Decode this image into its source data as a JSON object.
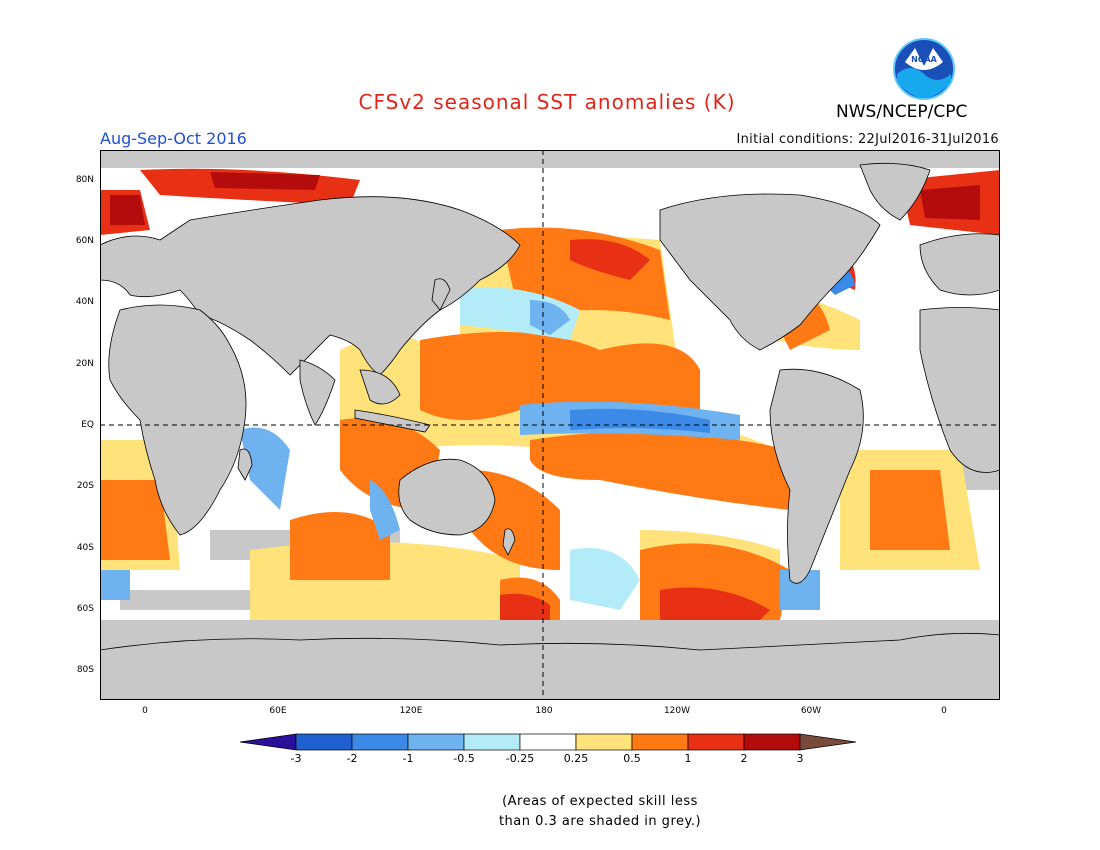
{
  "header": {
    "title": "CFSv2 seasonal SST anomalies (K)",
    "agency": "NWS/NCEP/CPC",
    "logo_text": "NOAA",
    "season": "Aug-Sep-Oct 2016",
    "initial_conditions": "Initial conditions: 22Jul2016-31Jul2016"
  },
  "map": {
    "lat_labels": [
      "80N",
      "60N",
      "40N",
      "20N",
      "EQ",
      "20S",
      "40S",
      "60S",
      "80S"
    ],
    "lon_labels": [
      "0",
      "60E",
      "120E",
      "180",
      "120W",
      "60W",
      "0"
    ],
    "land_color": "#c8c8c8",
    "grey_skill_color": "#c8c8c8"
  },
  "colorbar": {
    "labels": [
      "-3",
      "-2",
      "-1",
      "-0.5",
      "-0.25",
      "0.25",
      "0.5",
      "1",
      "2",
      "3"
    ],
    "colors": [
      "#2a0f9a",
      "#1f5fd0",
      "#3c8ae8",
      "#6fb2f0",
      "#b3ecf8",
      "#ffffff",
      "#ffe27a",
      "#ff7a14",
      "#e83015",
      "#b40c0c",
      "#7a4a3a"
    ]
  },
  "footnote": {
    "line1": "(Areas of expected skill less",
    "line2": "than 0.3 are shaded in grey.)"
  }
}
